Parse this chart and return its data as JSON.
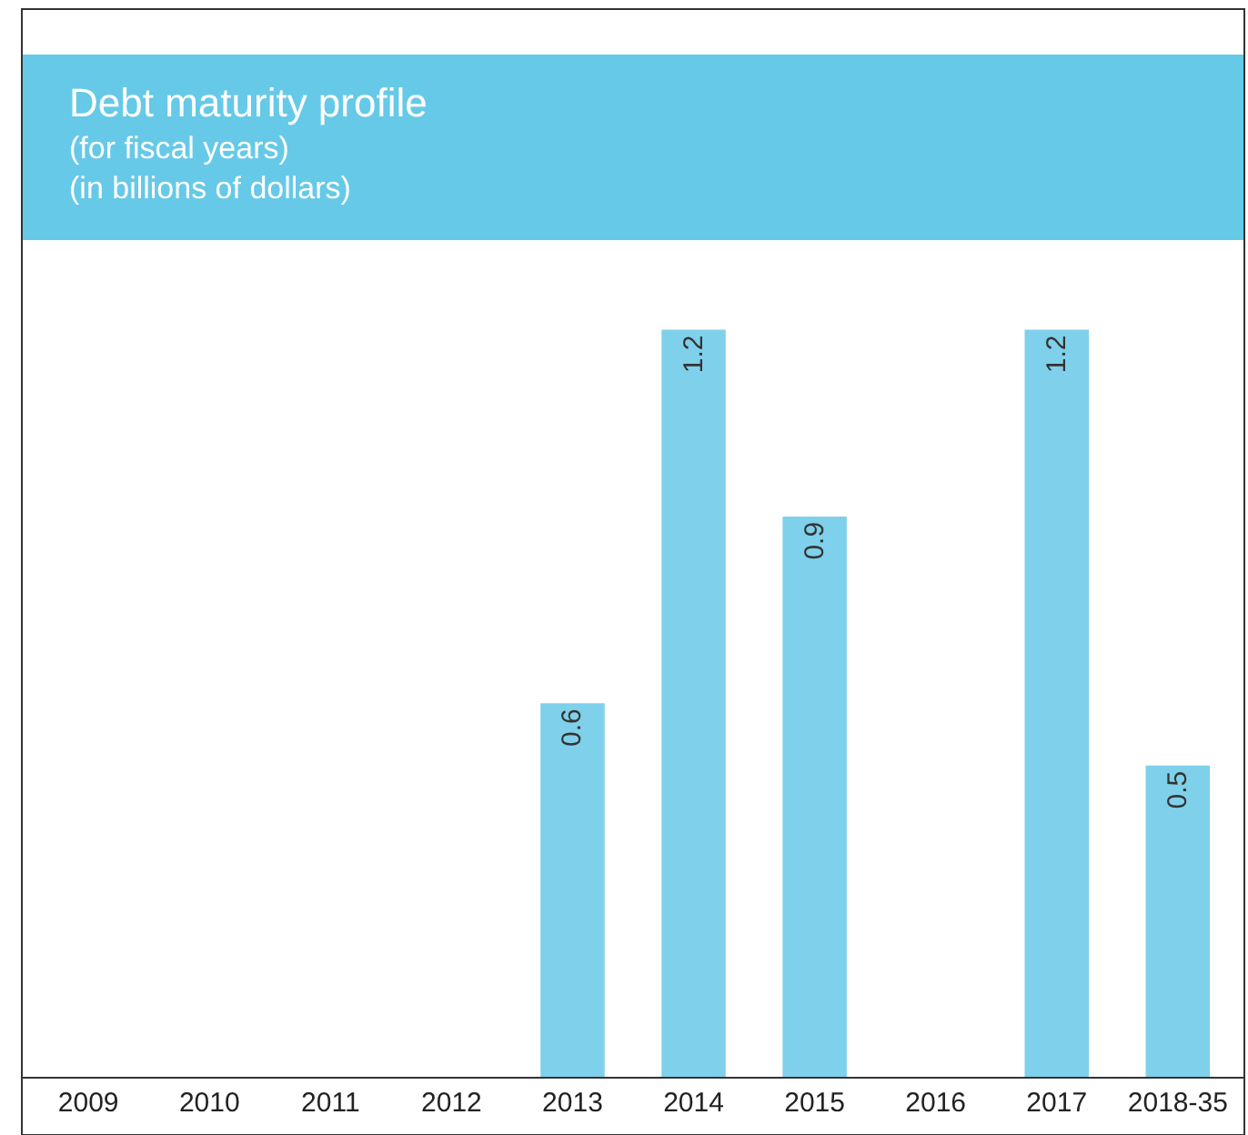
{
  "chart_data": {
    "type": "bar",
    "title": "Debt maturity profile",
    "subtitle": "(for fiscal years)\n(in billions of dollars)",
    "categories": [
      "2009",
      "2010",
      "2011",
      "2012",
      "2013",
      "2014",
      "2015",
      "2016",
      "2017",
      "2018-35"
    ],
    "values": [
      null,
      null,
      null,
      null,
      0.6,
      1.2,
      0.9,
      null,
      1.2,
      0.5
    ],
    "color": "#7fd0ea",
    "data_labels": true,
    "tick_labels": "x"
  }
}
